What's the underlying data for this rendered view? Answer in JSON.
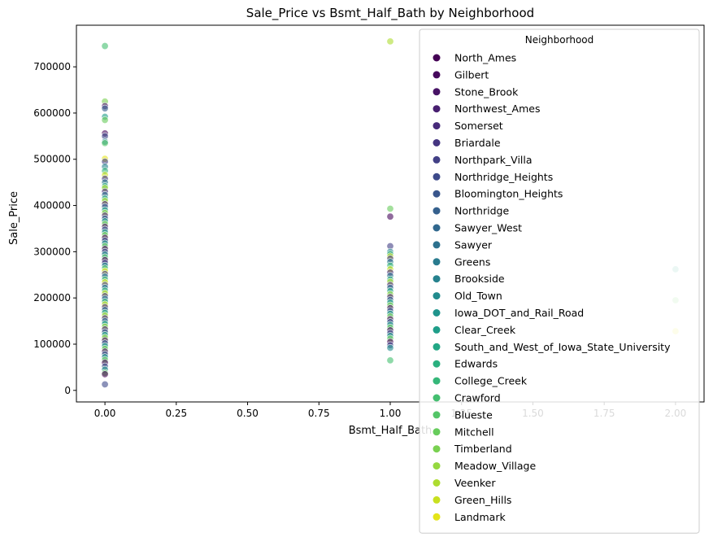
{
  "chart_data": {
    "type": "scatter",
    "title": "Sale_Price vs Bsmt_Half_Bath by Neighborhood",
    "xlabel": "Bsmt_Half_Bath",
    "ylabel": "Sale_Price",
    "xlim": [
      -0.1,
      2.1
    ],
    "ylim": [
      -25000,
      790000
    ],
    "xticks": [
      0.0,
      0.25,
      0.5,
      0.75,
      1.0,
      1.25,
      1.5,
      1.75,
      2.0
    ],
    "xtick_labels": [
      "0.00",
      "0.25",
      "0.50",
      "0.75",
      "1.00",
      "1.25",
      "1.50",
      "1.75",
      "2.00"
    ],
    "yticks": [
      0,
      100000,
      200000,
      300000,
      400000,
      500000,
      600000,
      700000
    ],
    "ytick_labels": [
      "0",
      "100000",
      "200000",
      "300000",
      "400000",
      "500000",
      "600000",
      "700000"
    ],
    "grid": false,
    "legend": {
      "title": "Neighborhood",
      "placement": "upper-right",
      "entries": [
        {
          "name": "North_Ames",
          "color": "#440154"
        },
        {
          "name": "Gilbert",
          "color": "#46085c"
        },
        {
          "name": "Stone_Brook",
          "color": "#471365"
        },
        {
          "name": "Northwest_Ames",
          "color": "#481f70"
        },
        {
          "name": "Somerset",
          "color": "#472a7a"
        },
        {
          "name": "Briardale",
          "color": "#453581"
        },
        {
          "name": "Northpark_Villa",
          "color": "#424086"
        },
        {
          "name": "Northridge_Heights",
          "color": "#3d4a8a"
        },
        {
          "name": "Bloomington_Heights",
          "color": "#39568c"
        },
        {
          "name": "Northridge",
          "color": "#35608d"
        },
        {
          "name": "Sawyer_West",
          "color": "#31688e"
        },
        {
          "name": "Sawyer",
          "color": "#2d718e"
        },
        {
          "name": "Greens",
          "color": "#297b8e"
        },
        {
          "name": "Brookside",
          "color": "#26828e"
        },
        {
          "name": "Old_Town",
          "color": "#228b8d"
        },
        {
          "name": "Iowa_DOT_and_Rail_Road",
          "color": "#1f948c"
        },
        {
          "name": "Clear_Creek",
          "color": "#1f9e89"
        },
        {
          "name": "South_and_West_of_Iowa_State_University",
          "color": "#22a785"
        },
        {
          "name": "Edwards",
          "color": "#2ab07f"
        },
        {
          "name": "College_Creek",
          "color": "#35b779"
        },
        {
          "name": "Crawford",
          "color": "#44bf70"
        },
        {
          "name": "Blueste",
          "color": "#54c568"
        },
        {
          "name": "Mitchell",
          "color": "#67cc5c"
        },
        {
          "name": "Timberland",
          "color": "#7ad151"
        },
        {
          "name": "Meadow_Village",
          "color": "#95d840"
        },
        {
          "name": "Veenker",
          "color": "#addc30"
        },
        {
          "name": "Green_Hills",
          "color": "#c8e020"
        },
        {
          "name": "Landmark",
          "color": "#e4e419"
        }
      ]
    },
    "series": [
      {
        "x": 0,
        "y": [
          745000,
          625000,
          615000,
          610000,
          592000,
          585000,
          556000,
          550000,
          538000,
          535000,
          501000,
          495000,
          484000,
          475000,
          466000,
          458000,
          450000,
          442000,
          438000,
          430000,
          423000,
          415000,
          410000,
          403000,
          397000,
          390000,
          384000,
          378000,
          372000,
          366000,
          360000,
          354000,
          348000,
          342000,
          336000,
          330000,
          324000,
          318000,
          312000,
          306000,
          300000,
          294000,
          288000,
          282000,
          276000,
          270000,
          264000,
          258000,
          252000,
          246000,
          240000,
          234000,
          228000,
          222000,
          216000,
          210000,
          204000,
          198000,
          192000,
          186000,
          180000,
          174000,
          168000,
          162000,
          156000,
          150000,
          144000,
          138000,
          132000,
          126000,
          120000,
          114000,
          108000,
          102000,
          96000,
          90000,
          84000,
          78000,
          72000,
          66000,
          60000,
          52000,
          45000,
          38000,
          35000,
          13000
        ]
      },
      {
        "x": 1,
        "y": [
          755000,
          393000,
          376000,
          312000,
          300000,
          295000,
          290000,
          285000,
          278000,
          270000,
          262000,
          255000,
          248000,
          240000,
          235000,
          228000,
          222000,
          215000,
          208000,
          202000,
          196000,
          190000,
          184000,
          178000,
          172000,
          166000,
          160000,
          154000,
          148000,
          142000,
          136000,
          130000,
          124000,
          118000,
          112000,
          105000,
          98000,
          92000,
          65000
        ]
      },
      {
        "x": 2,
        "y": [
          262000,
          195000,
          128000
        ]
      }
    ]
  }
}
